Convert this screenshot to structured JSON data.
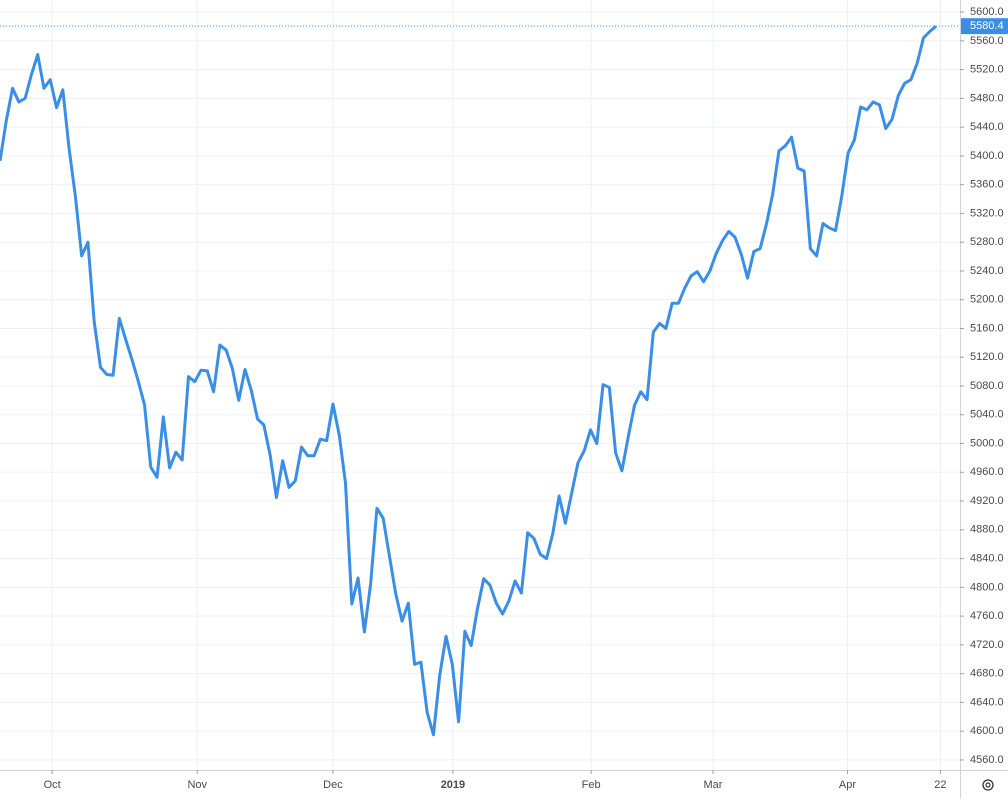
{
  "chart_data": {
    "type": "line",
    "series": [
      {
        "color": "#3b8ee6",
        "values": [
          5393,
          5449,
          5494,
          5475,
          5480,
          5513,
          5541,
          5494,
          5506,
          5467,
          5492,
          5410,
          5344,
          5261,
          5280,
          5169,
          5106,
          5096,
          5095,
          5174,
          5145,
          5117,
          5087,
          5054,
          4967,
          4953,
          5037,
          4966,
          4988,
          4977,
          5093,
          5086,
          5102,
          5101,
          5072,
          5137,
          5130,
          5104,
          5060,
          5103,
          5074,
          5034,
          5026,
          4984,
          4925,
          4976,
          4939,
          4948,
          4995,
          4983,
          4983,
          5006,
          5004,
          5055,
          5012,
          4945,
          4777,
          4813,
          4738,
          4805,
          4910,
          4896,
          4843,
          4791,
          4753,
          4778,
          4693,
          4696,
          4626,
          4595,
          4678,
          4732,
          4693,
          4613,
          4739,
          4719,
          4770,
          4812,
          4803,
          4778,
          4763,
          4781,
          4809,
          4792,
          4876,
          4868,
          4846,
          4840,
          4875,
          4927,
          4889,
          4931,
          4973,
          4990,
          5019,
          5000,
          5082,
          5078,
          4987,
          4962,
          5009,
          5053,
          5072,
          5061,
          5155,
          5167,
          5160,
          5195,
          5195,
          5216,
          5233,
          5239,
          5225,
          5240,
          5264,
          5282,
          5295,
          5287,
          5263,
          5230,
          5267,
          5271,
          5305,
          5347,
          5407,
          5414,
          5426,
          5383,
          5379,
          5271,
          5261,
          5306,
          5300,
          5296,
          5344,
          5404,
          5422,
          5468,
          5464,
          5475,
          5471,
          5438,
          5451,
          5484,
          5501,
          5506,
          5529,
          5564,
          5573,
          5580.4
        ]
      }
    ],
    "xlim": [
      0,
      152.5
    ],
    "xticks": [
      {
        "value": 8.3,
        "label": "Oct"
      },
      {
        "value": 31.4,
        "label": "Nov"
      },
      {
        "value": 53,
        "label": "Dec"
      },
      {
        "value": 72.1,
        "label": "2019"
      },
      {
        "value": 94.1,
        "label": "Feb"
      },
      {
        "value": 113.5,
        "label": "Mar"
      },
      {
        "value": 134.9,
        "label": "Apr"
      },
      {
        "value": 149.7,
        "label": "22"
      }
    ],
    "ylim": [
      4546,
      5616.8
    ],
    "yticks": [
      {
        "value": 4560,
        "label": "4560.0"
      },
      {
        "value": 4600,
        "label": "4600.0"
      },
      {
        "value": 4640,
        "label": "4640.0"
      },
      {
        "value": 4680,
        "label": "4680.0"
      },
      {
        "value": 4720,
        "label": "4720.0"
      },
      {
        "value": 4760,
        "label": "4760.0"
      },
      {
        "value": 4800,
        "label": "4800.0"
      },
      {
        "value": 4840,
        "label": "4840.0"
      },
      {
        "value": 4880,
        "label": "4880.0"
      },
      {
        "value": 4920,
        "label": "4920.0"
      },
      {
        "value": 4960,
        "label": "4960.0"
      },
      {
        "value": 5000,
        "label": "5000.0"
      },
      {
        "value": 5040,
        "label": "5040.0"
      },
      {
        "value": 5080,
        "label": "5080.0"
      },
      {
        "value": 5120,
        "label": "5120.0"
      },
      {
        "value": 5160,
        "label": "5160.0"
      },
      {
        "value": 5200,
        "label": "5200.0"
      },
      {
        "value": 5240,
        "label": "5240.0"
      },
      {
        "value": 5280,
        "label": "5280.0"
      },
      {
        "value": 5320,
        "label": "5320.0"
      },
      {
        "value": 5360,
        "label": "5360.0"
      },
      {
        "value": 5400,
        "label": "5400.0"
      },
      {
        "value": 5440,
        "label": "5440.0"
      },
      {
        "value": 5480,
        "label": "5480.0"
      },
      {
        "value": 5520,
        "label": "5520.0"
      },
      {
        "value": 5560,
        "label": "5560.0"
      },
      {
        "value": 5600,
        "label": "5600.0"
      }
    ],
    "grid": true
  }
}
